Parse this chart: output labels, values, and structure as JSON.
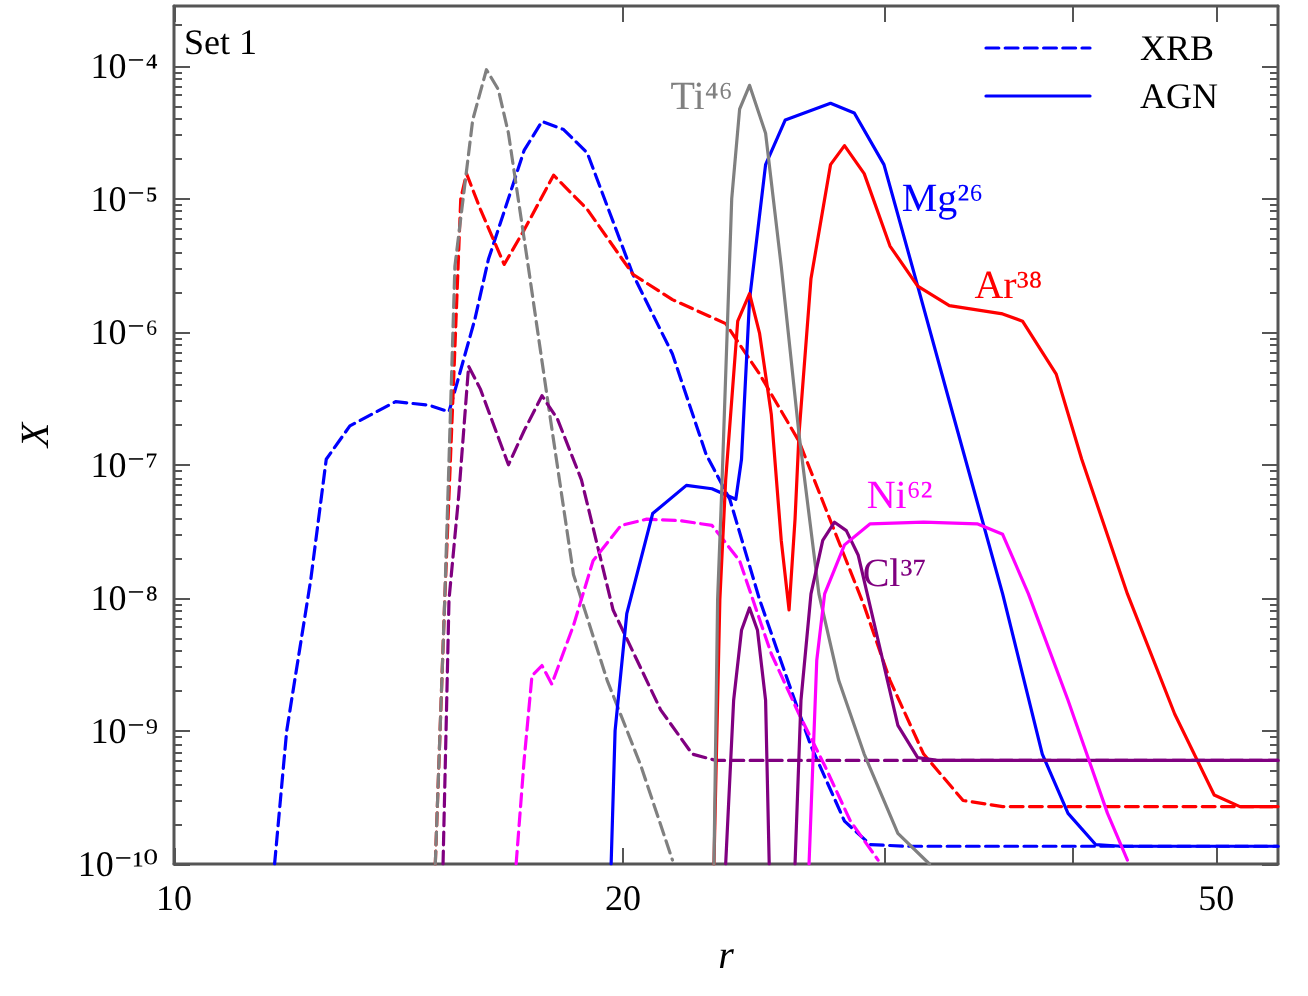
{
  "chart_data": {
    "type": "line",
    "title": "Set 1",
    "xlabel": "r",
    "ylabel": "X",
    "log": "xy",
    "legend": "top right",
    "marker": "none",
    "grid": false,
    "xlim": [
      10,
      55
    ],
    "xticks": [
      10,
      20,
      {
        "value": 30,
        "label": null
      },
      {
        "value": 40,
        "label": null
      },
      50
    ],
    "ylim": [
      1e-10,
      0.00028
    ],
    "yticks": [
      {
        "value": 1e-10,
        "label": "10⁻¹⁰"
      },
      {
        "value": 1e-09,
        "label": "10⁻⁹"
      },
      {
        "value": 1e-08,
        "label": "10⁻⁸"
      },
      {
        "value": 1e-07,
        "label": "10⁻⁷"
      },
      {
        "value": 1e-06,
        "label": "10⁻⁶"
      },
      {
        "value": 1e-05,
        "label": "10⁻⁵"
      },
      {
        "value": 0.0001,
        "label": "10⁻⁴"
      }
    ],
    "series": [
      {
        "name": "XRB",
        "color": "#0000ff",
        "line_style": "dashed",
        "x": [
          11.68,
          11.9,
          12.35,
          12.65,
          13.12,
          14.08,
          14.83,
          15.29,
          15.91,
          16.25,
          16.76,
          17.17,
          17.65,
          18.25,
          18.93,
          20.31,
          21.59,
          22.74,
          23.59,
          24.7,
          25.7,
          26.74,
          28.16,
          29.3,
          30.86,
          55
        ],
        "values": [
          1e-10,
          1e-09,
          1.36e-08,
          1.1e-07,
          1.96e-07,
          2.98e-07,
          2.8e-07,
          2.5e-07,
          1.23e-06,
          3.5e-06,
          1e-05,
          2.3e-05,
          3.8e-05,
          3.3e-05,
          2.2e-05,
          2.7e-06,
          6.8e-07,
          1.2e-07,
          5.5e-08,
          9.7e-09,
          2.7e-09,
          7.7e-10,
          2.1e-10,
          1.4e-10,
          1.36e-10,
          1.36e-10
        ]
      },
      {
        "color": "#ff0000",
        "line_style": "dashed",
        "x": [
          14.97,
          15.19,
          15.38,
          15.57,
          15.71,
          16.05,
          16.65,
          17.17,
          17.97,
          18.93,
          20.31,
          21.59,
          23.44,
          24.7,
          26.25,
          29.03,
          30.21,
          31.82,
          33.82,
          35.95,
          55
        ],
        "values": [
          1e-10,
          9.7e-09,
          3e-07,
          1e-05,
          1.54e-05,
          8.3e-06,
          3.2e-06,
          5.8e-06,
          1.5e-05,
          8.3e-06,
          2.7e-06,
          1.74e-06,
          1.15e-06,
          4.8e-07,
          1.5e-07,
          8.7e-09,
          2.4e-09,
          6.7e-10,
          3e-10,
          2.7e-10,
          2.7e-10
        ]
      },
      {
        "color": "#808080",
        "line_style": "dashed",
        "x": [
          14.97,
          15.19,
          15.43,
          15.86,
          16.2,
          16.5,
          16.76,
          17.28,
          17.81,
          18.53,
          19.52,
          20.56,
          21.59
        ],
        "values": [
          1e-10,
          9.7e-09,
          3.1e-06,
          3.9e-05,
          9.3e-05,
          6.6e-05,
          3.1e-05,
          3.1e-06,
          3e-07,
          1.5e-08,
          2.4e-09,
          5.5e-10,
          1.07e-10
        ]
      },
      {
        "color": "#800080",
        "line_style": "dashed",
        "x": [
          15.15,
          15.29,
          15.52,
          15.76,
          16.05,
          16.76,
          17.17,
          17.65,
          18.08,
          18.76,
          19.7,
          21.2,
          22.26,
          23.09,
          55
        ],
        "values": [
          1e-10,
          9.7e-09,
          5.8e-08,
          5.5e-07,
          3.7e-07,
          1e-07,
          1.8e-07,
          3.3e-07,
          2.2e-07,
          7.7e-08,
          8.1e-09,
          1.44e-09,
          6.7e-10,
          6e-10,
          6e-10
        ]
      },
      {
        "color": "#ff00ff",
        "line_style": "dashed",
        "x": [
          16.96,
          17.17,
          17.38,
          17.65,
          17.92,
          18.53,
          19.1,
          19.94,
          20.75,
          21.86,
          22.95,
          23.95,
          25.15,
          26.25,
          27.31,
          28.42,
          29.66
        ],
        "values": [
          1e-10,
          6e-10,
          2.6e-09,
          3.1e-09,
          2.25e-09,
          6.2e-09,
          1.9e-08,
          3.5e-08,
          3.9e-08,
          3.8e-08,
          3.5e-08,
          1.9e-08,
          3.8e-09,
          1.34e-09,
          5.5e-10,
          2.1e-10,
          1.07e-10
        ]
      },
      {
        "name": "AGN",
        "color": "#0000ff",
        "line_style": "solid",
        "x": [
          19.64,
          19.76,
          20.12,
          20.94,
          22.06,
          22.95,
          23.81,
          24.02,
          24.32,
          24.93,
          25.7,
          27.56,
          28.59,
          29.93,
          31.53,
          33.11,
          35.95,
          38.22,
          39.77,
          41.5,
          43.18,
          55
        ],
        "values": [
          1e-10,
          1e-09,
          7.6e-09,
          4.3e-08,
          7e-08,
          6.6e-08,
          5.5e-08,
          1.1e-07,
          1.74e-06,
          1.8e-05,
          3.9e-05,
          5.2e-05,
          4.4e-05,
          1.8e-05,
          2.2e-06,
          3e-07,
          1.07e-08,
          6.7e-10,
          2.4e-10,
          1.4e-10,
          1.36e-10,
          1.36e-10
        ]
      },
      {
        "color": "#ff0000",
        "line_style": "solid",
        "x": [
          23.02,
          23.23,
          23.44,
          23.88,
          24.32,
          24.7,
          25.15,
          25.54,
          25.85,
          26.09,
          26.25,
          26.74,
          27.56,
          28.16,
          29.03,
          30.21,
          31.53,
          33.11,
          35.95,
          37.07,
          39.05,
          40.62,
          43.59,
          46.89,
          49.84,
          51.86,
          55
        ],
        "values": [
          1e-10,
          9.7e-09,
          7.7e-08,
          1.2e-06,
          1.93e-06,
          9.7e-07,
          2.4e-07,
          2.7e-08,
          8.1e-09,
          3.9e-08,
          1.7e-07,
          2.5e-06,
          1.8e-05,
          2.5e-05,
          1.54e-05,
          4.4e-06,
          2.2e-06,
          1.57e-06,
          1.36e-06,
          1.2e-06,
          4.8e-07,
          1.1e-07,
          1.07e-08,
          1.34e-09,
          3.3e-10,
          2.7e-10,
          2.7e-10
        ]
      },
      {
        "color": "#808080",
        "line_style": "solid",
        "x": [
          23.02,
          23.15,
          23.3,
          23.66,
          23.95,
          24.32,
          24.93,
          25.54,
          26.25,
          27.07,
          27.91,
          29.03,
          30.58,
          32.11
        ],
        "values": [
          1e-10,
          9.7e-09,
          6.6e-08,
          1e-05,
          4.7e-05,
          7.1e-05,
          3.1e-05,
          3.1e-06,
          1.7e-07,
          1.07e-08,
          2.4e-09,
          6.7e-10,
          1.7e-10,
          1e-10
        ]
      },
      {
        "color": "#800080",
        "line_style": "solid",
        "x": [
          23.44,
          23.73,
          24.02,
          24.32,
          24.62,
          24.93,
          25.07,
          25.6,
          26.09,
          26.33,
          26.74,
          27.23,
          27.73,
          28.24,
          28.76,
          29.66,
          30.58,
          31.53,
          32.51,
          55
        ],
        "values": [
          1e-10,
          1.7e-09,
          5.7e-09,
          8.4e-09,
          5.7e-09,
          1.7e-09,
          1e-10,
          null,
          1e-10,
          1.7e-09,
          1.07e-08,
          2.7e-08,
          3.7e-08,
          3.2e-08,
          2.1e-08,
          4.8e-09,
          1.1e-09,
          6.3e-10,
          6e-10,
          6e-10
        ]
      },
      {
        "color": "#ff00ff",
        "line_style": "solid",
        "x": [
          26.66,
          26.98,
          27.31,
          28.16,
          29.3,
          31.82,
          34.56,
          35.95,
          37.41,
          39.77,
          42.27,
          43.59
        ],
        "values": [
          1e-10,
          3.4e-09,
          1.07e-08,
          2.5e-08,
          3.6e-08,
          3.7e-08,
          3.6e-08,
          3e-08,
          1.07e-08,
          1.7e-09,
          2.4e-10,
          1.07e-10
        ]
      }
    ],
    "annotations": [
      "Mg²⁶",
      "Ar³⁸",
      "Ti⁴⁶",
      "Cl³⁷",
      "Ni⁶²"
    ]
  }
}
